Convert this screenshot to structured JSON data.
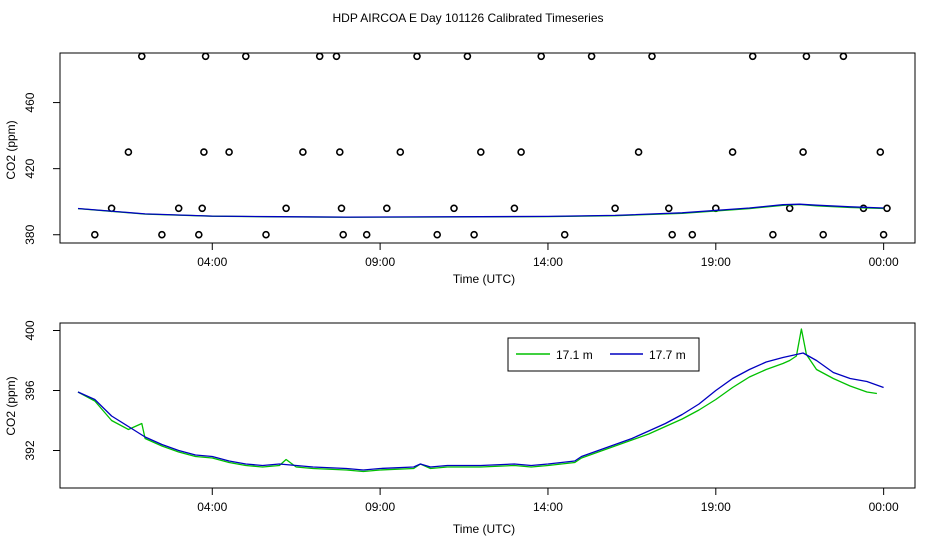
{
  "title": "HDP AIRCOA E  Day 101126  Calibrated Timeseries",
  "chart_data": [
    {
      "type": "scatter",
      "xlabel": "Time (UTC)",
      "ylabel": "CO2 (ppm)",
      "xlim": [
        -4,
        20.1
      ],
      "ylim": [
        375,
        490
      ],
      "x_tick_hours": [
        0,
        5,
        10,
        15,
        20
      ],
      "x_tick_labels": [
        "04:00",
        "09:00",
        "14:00",
        "19:00",
        "00:00"
      ],
      "y_ticks": [
        380,
        420,
        460
      ],
      "y_tick_labels": [
        "380",
        "420",
        "460"
      ],
      "grid": false,
      "series": [
        {
          "color": "#000000",
          "marker": "open-circle",
          "points": [
            [
              -3.5,
              380
            ],
            [
              -3.0,
              396
            ],
            [
              -2.5,
              430
            ],
            [
              -2.1,
              488
            ],
            [
              -1.5,
              380
            ],
            [
              -1.0,
              396
            ],
            [
              -0.4,
              380
            ],
            [
              -0.3,
              396
            ],
            [
              -0.25,
              430
            ],
            [
              -0.2,
              488
            ],
            [
              0.5,
              430
            ],
            [
              1.0,
              488
            ],
            [
              1.6,
              380
            ],
            [
              2.2,
              396
            ],
            [
              2.7,
              430
            ],
            [
              3.2,
              488
            ],
            [
              3.7,
              488
            ],
            [
              3.8,
              430
            ],
            [
              3.85,
              396
            ],
            [
              3.9,
              380
            ],
            [
              4.6,
              380
            ],
            [
              5.2,
              396
            ],
            [
              5.6,
              430
            ],
            [
              6.1,
              488
            ],
            [
              6.7,
              380
            ],
            [
              7.2,
              396
            ],
            [
              7.6,
              488
            ],
            [
              7.8,
              380
            ],
            [
              8.0,
              430
            ],
            [
              9.0,
              396
            ],
            [
              9.2,
              430
            ],
            [
              9.8,
              488
            ],
            [
              10.5,
              380
            ],
            [
              11.3,
              488
            ],
            [
              12.0,
              396
            ],
            [
              12.7,
              430
            ],
            [
              13.1,
              488
            ],
            [
              13.6,
              396
            ],
            [
              13.7,
              380
            ],
            [
              14.3,
              380
            ],
            [
              15.0,
              396
            ],
            [
              15.5,
              430
            ],
            [
              16.1,
              488
            ],
            [
              16.7,
              380
            ],
            [
              17.2,
              396
            ],
            [
              17.6,
              430
            ],
            [
              17.7,
              488
            ],
            [
              18.2,
              380
            ],
            [
              18.8,
              488
            ],
            [
              19.4,
              396
            ],
            [
              19.9,
              430
            ],
            [
              20.0,
              380
            ],
            [
              20.1,
              396
            ]
          ]
        },
        {
          "name": "17.1 m",
          "color": "#00c000",
          "line": true,
          "points": [
            [
              -4,
              395.8
            ],
            [
              -2,
              392.5
            ],
            [
              0,
              391.2
            ],
            [
              2,
              390.8
            ],
            [
              4,
              390.6
            ],
            [
              6,
              390.7
            ],
            [
              8,
              390.8
            ],
            [
              10,
              391
            ],
            [
              12,
              391.5
            ],
            [
              14,
              393
            ],
            [
              16,
              395.8
            ],
            [
              17,
              397.8
            ],
            [
              17.5,
              398.3
            ],
            [
              18,
              397.5
            ],
            [
              19,
              396.5
            ],
            [
              20,
              395.9
            ]
          ]
        },
        {
          "name": "17.7 m",
          "color": "#0000c0",
          "line": true,
          "points": [
            [
              -4,
              395.9
            ],
            [
              -2,
              392.6
            ],
            [
              0,
              391.3
            ],
            [
              2,
              390.9
            ],
            [
              4,
              390.7
            ],
            [
              6,
              390.8
            ],
            [
              8,
              390.9
            ],
            [
              10,
              391.1
            ],
            [
              12,
              391.7
            ],
            [
              14,
              393.3
            ],
            [
              16,
              396.2
            ],
            [
              17,
              398.2
            ],
            [
              17.5,
              398.5
            ],
            [
              18,
              397.9
            ],
            [
              19,
              396.9
            ],
            [
              20,
              396.2
            ]
          ]
        }
      ]
    },
    {
      "type": "line",
      "xlabel": "Time (UTC)",
      "ylabel": "CO2 (ppm)",
      "xlim": [
        -4,
        20.1
      ],
      "ylim": [
        389.5,
        400.5
      ],
      "x_tick_hours": [
        0,
        5,
        10,
        15,
        20
      ],
      "x_tick_labels": [
        "04:00",
        "09:00",
        "14:00",
        "19:00",
        "00:00"
      ],
      "y_ticks": [
        392,
        396,
        400
      ],
      "y_tick_labels": [
        "392",
        "396",
        "400"
      ],
      "grid": false,
      "legend": {
        "position": "top-right-inside"
      },
      "series": [
        {
          "name": "17.1 m",
          "color": "#00c000",
          "points": [
            [
              -4.0,
              395.9
            ],
            [
              -3.5,
              395.3
            ],
            [
              -3.0,
              394.0
            ],
            [
              -2.5,
              393.4
            ],
            [
              -2.1,
              393.8
            ],
            [
              -2.0,
              392.8
            ],
            [
              -1.5,
              392.3
            ],
            [
              -1.0,
              391.9
            ],
            [
              -0.5,
              391.6
            ],
            [
              0,
              391.5
            ],
            [
              0.5,
              391.2
            ],
            [
              1.0,
              391.0
            ],
            [
              1.5,
              390.9
            ],
            [
              2.0,
              391.0
            ],
            [
              2.2,
              391.4
            ],
            [
              2.5,
              390.9
            ],
            [
              3.0,
              390.8
            ],
            [
              4.0,
              390.7
            ],
            [
              4.5,
              390.6
            ],
            [
              5.0,
              390.7
            ],
            [
              6.0,
              390.8
            ],
            [
              6.2,
              391.1
            ],
            [
              6.5,
              390.8
            ],
            [
              7.0,
              390.9
            ],
            [
              8.0,
              390.9
            ],
            [
              9.0,
              391.0
            ],
            [
              9.5,
              390.9
            ],
            [
              10.0,
              391.0
            ],
            [
              10.8,
              391.2
            ],
            [
              11.0,
              391.5
            ],
            [
              11.5,
              391.9
            ],
            [
              12.0,
              392.3
            ],
            [
              12.5,
              392.7
            ],
            [
              13.0,
              393.1
            ],
            [
              13.5,
              393.6
            ],
            [
              14.0,
              394.1
            ],
            [
              14.5,
              394.7
            ],
            [
              15.0,
              395.4
            ],
            [
              15.5,
              396.2
            ],
            [
              16.0,
              396.9
            ],
            [
              16.5,
              397.4
            ],
            [
              17.0,
              397.8
            ],
            [
              17.2,
              398.0
            ],
            [
              17.4,
              398.3
            ],
            [
              17.55,
              400.1
            ],
            [
              17.7,
              398.4
            ],
            [
              18.0,
              397.4
            ],
            [
              18.5,
              396.8
            ],
            [
              19.0,
              396.3
            ],
            [
              19.5,
              395.9
            ],
            [
              19.8,
              395.8
            ]
          ]
        },
        {
          "name": "17.7 m",
          "color": "#0000c0",
          "points": [
            [
              -4.0,
              395.9
            ],
            [
              -3.5,
              395.4
            ],
            [
              -3.0,
              394.3
            ],
            [
              -2.5,
              393.6
            ],
            [
              -2.0,
              392.9
            ],
            [
              -1.5,
              392.4
            ],
            [
              -1.0,
              392.0
            ],
            [
              -0.5,
              391.7
            ],
            [
              0,
              391.6
            ],
            [
              0.5,
              391.3
            ],
            [
              1.0,
              391.1
            ],
            [
              1.5,
              391.0
            ],
            [
              2.0,
              391.1
            ],
            [
              2.5,
              391.0
            ],
            [
              3.0,
              390.9
            ],
            [
              4.0,
              390.8
            ],
            [
              4.5,
              390.7
            ],
            [
              5.0,
              390.8
            ],
            [
              6.0,
              390.9
            ],
            [
              6.2,
              391.1
            ],
            [
              6.5,
              390.9
            ],
            [
              7.0,
              391.0
            ],
            [
              8.0,
              391.0
            ],
            [
              9.0,
              391.1
            ],
            [
              9.5,
              391.0
            ],
            [
              10.0,
              391.1
            ],
            [
              10.8,
              391.3
            ],
            [
              11.0,
              391.6
            ],
            [
              11.5,
              392.0
            ],
            [
              12.0,
              392.4
            ],
            [
              12.5,
              392.8
            ],
            [
              13.0,
              393.3
            ],
            [
              13.5,
              393.8
            ],
            [
              14.0,
              394.4
            ],
            [
              14.5,
              395.1
            ],
            [
              15.0,
              396.0
            ],
            [
              15.5,
              396.8
            ],
            [
              16.0,
              397.4
            ],
            [
              16.5,
              397.9
            ],
            [
              17.0,
              398.2
            ],
            [
              17.4,
              398.4
            ],
            [
              17.6,
              398.5
            ],
            [
              18.0,
              398.0
            ],
            [
              18.5,
              397.2
            ],
            [
              19.0,
              396.8
            ],
            [
              19.5,
              396.6
            ],
            [
              20.0,
              396.2
            ]
          ]
        }
      ]
    }
  ]
}
